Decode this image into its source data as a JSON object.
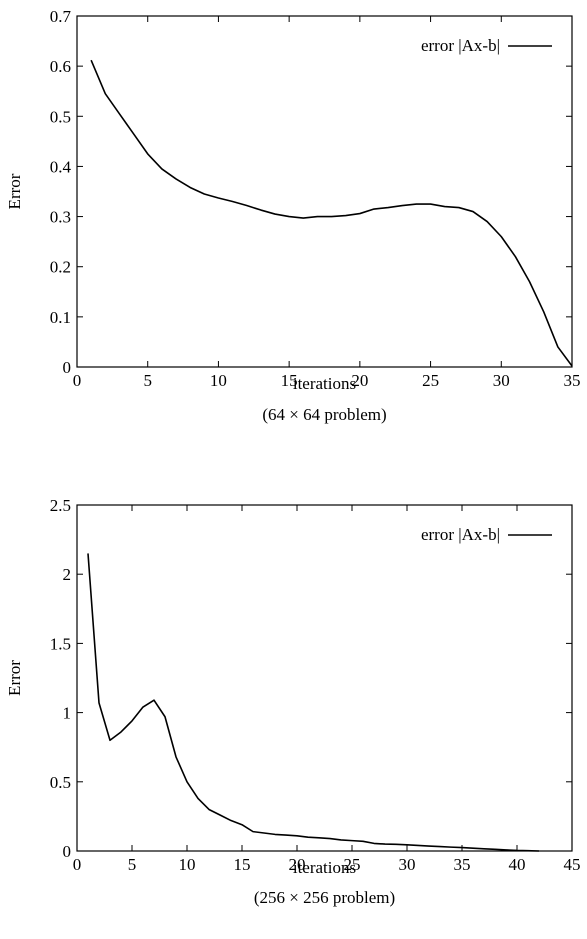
{
  "chart_data": [
    {
      "type": "line",
      "ylabel": "Error",
      "xlabel": "iterations",
      "caption": "(64 × 64 problem)",
      "xlim": [
        0,
        35
      ],
      "ylim": [
        0,
        0.7
      ],
      "xticks": [
        0,
        5,
        10,
        15,
        20,
        25,
        30,
        35
      ],
      "yticks": [
        0,
        0.1,
        0.2,
        0.3,
        0.4,
        0.5,
        0.6,
        0.7
      ],
      "xtick_labels": [
        "0",
        "5",
        "10",
        "15",
        "20",
        "25",
        "30",
        "35"
      ],
      "ytick_labels": [
        "0",
        "0.1",
        "0.2",
        "0.3",
        "0.4",
        "0.5",
        "0.6",
        "0.7"
      ],
      "grid": false,
      "legend_position": "top-right",
      "series": [
        {
          "name": "error |Ax-b|",
          "x": [
            1,
            2,
            3,
            4,
            5,
            6,
            7,
            8,
            9,
            10,
            11,
            12,
            13,
            14,
            15,
            16,
            17,
            18,
            19,
            20,
            21,
            22,
            23,
            24,
            25,
            26,
            27,
            28,
            29,
            30,
            31,
            32,
            33,
            34,
            35
          ],
          "y": [
            0.612,
            0.545,
            0.505,
            0.465,
            0.425,
            0.395,
            0.375,
            0.358,
            0.345,
            0.337,
            0.33,
            0.322,
            0.313,
            0.305,
            0.3,
            0.297,
            0.3,
            0.3,
            0.302,
            0.306,
            0.315,
            0.318,
            0.322,
            0.325,
            0.325,
            0.32,
            0.318,
            0.31,
            0.29,
            0.26,
            0.22,
            0.17,
            0.11,
            0.04,
            0.002
          ]
        }
      ]
    },
    {
      "type": "line",
      "ylabel": "Error",
      "xlabel": "iterations",
      "caption": "(256 × 256 problem)",
      "xlim": [
        0,
        45
      ],
      "ylim": [
        0,
        2.5
      ],
      "xticks": [
        0,
        5,
        10,
        15,
        20,
        25,
        30,
        35,
        40,
        45
      ],
      "yticks": [
        0,
        0.5,
        1,
        1.5,
        2,
        2.5
      ],
      "xtick_labels": [
        "0",
        "5",
        "10",
        "15",
        "20",
        "25",
        "30",
        "35",
        "40",
        "45"
      ],
      "ytick_labels": [
        "0",
        "0.5",
        "1",
        "1.5",
        "2",
        "2.5"
      ],
      "grid": false,
      "legend_position": "top-right",
      "series": [
        {
          "name": "error |Ax-b|",
          "x": [
            1,
            2,
            3,
            4,
            5,
            6,
            7,
            8,
            9,
            10,
            11,
            12,
            13,
            14,
            15,
            16,
            17,
            18,
            19,
            20,
            21,
            22,
            23,
            24,
            25,
            26,
            27,
            28,
            29,
            30,
            31,
            32,
            33,
            34,
            35,
            36,
            37,
            38,
            39,
            40,
            41,
            42
          ],
          "y": [
            2.15,
            1.07,
            0.8,
            0.86,
            0.94,
            1.04,
            1.09,
            0.97,
            0.68,
            0.5,
            0.38,
            0.3,
            0.26,
            0.22,
            0.19,
            0.14,
            0.13,
            0.12,
            0.115,
            0.11,
            0.1,
            0.095,
            0.09,
            0.08,
            0.075,
            0.07,
            0.055,
            0.05,
            0.048,
            0.045,
            0.04,
            0.036,
            0.032,
            0.028,
            0.025,
            0.02,
            0.016,
            0.012,
            0.008,
            0.004,
            0.002,
            0.0
          ]
        }
      ]
    }
  ]
}
